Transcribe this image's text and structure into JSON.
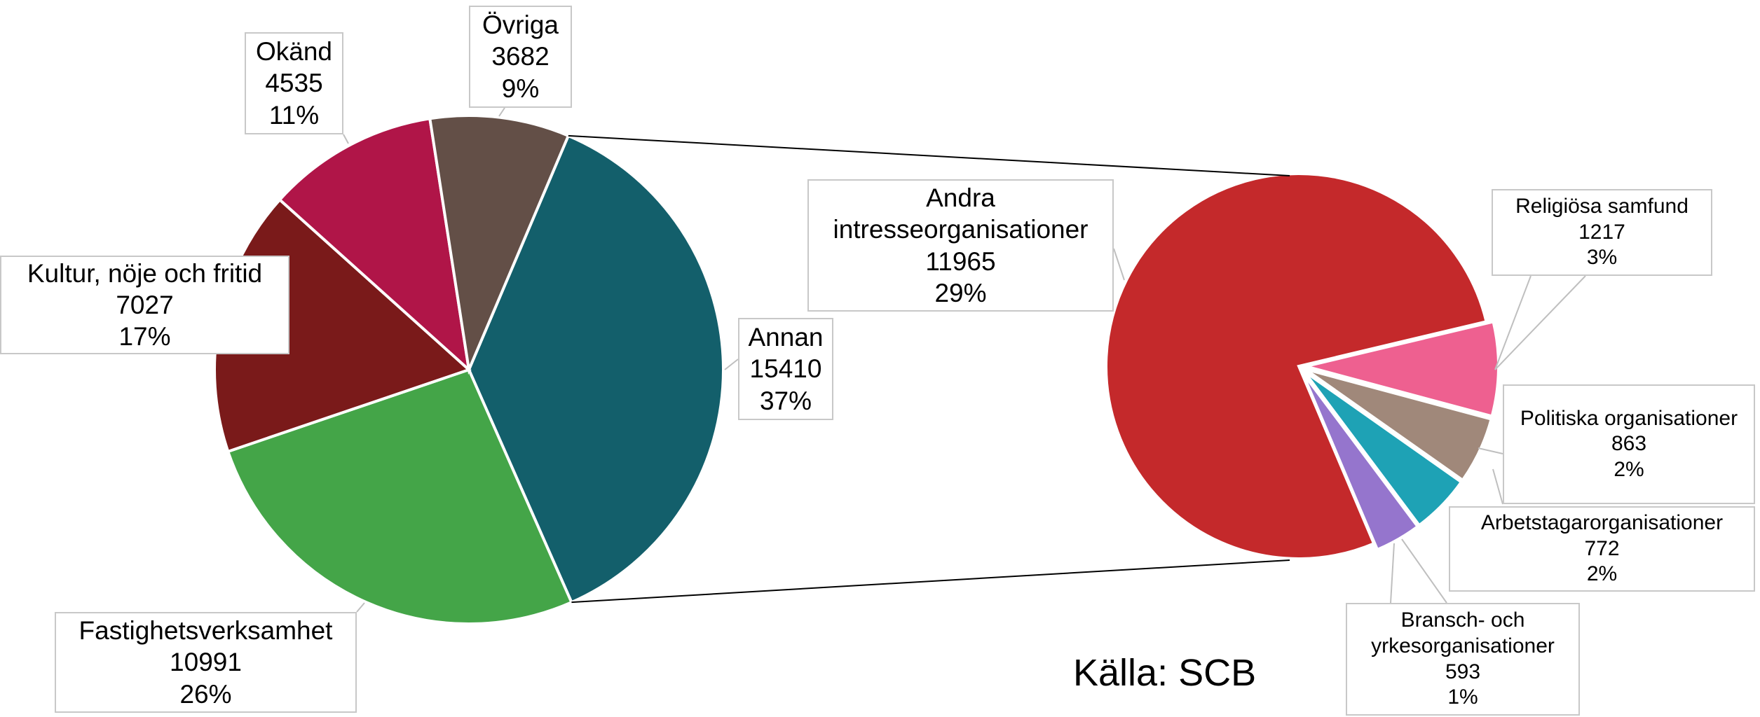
{
  "chart_data": {
    "type": "pie-of-pie",
    "source": "Källa: SCB",
    "categories": [
      "Annan",
      "Fastighetsverksamhet",
      "Kultur, nöje och fritid",
      "Okänd",
      "Övriga"
    ],
    "values": [
      15410,
      10991,
      7027,
      4535,
      3682
    ],
    "percent_labels": [
      "37%",
      "26%",
      "17%",
      "11%",
      "9%"
    ],
    "colors": [
      "#135f6b",
      "#44a548",
      "#7a1a1a",
      "#b01548",
      "#634f47"
    ],
    "secondary": {
      "categories": [
        "Andra intresseorganisationer",
        "Religiösa samfund",
        "Politiska organisationer",
        "Arbetstagarorganisationer",
        "Bransch- och yrkesorganisationer"
      ],
      "values": [
        11965,
        1217,
        863,
        772,
        593
      ],
      "percent_labels": [
        "29%",
        "3%",
        "2%",
        "2%",
        "1%"
      ],
      "colors": [
        "#c4292b",
        "#ee6090",
        "#a0887a",
        "#1ea2b5",
        "#9575cd"
      ]
    }
  }
}
